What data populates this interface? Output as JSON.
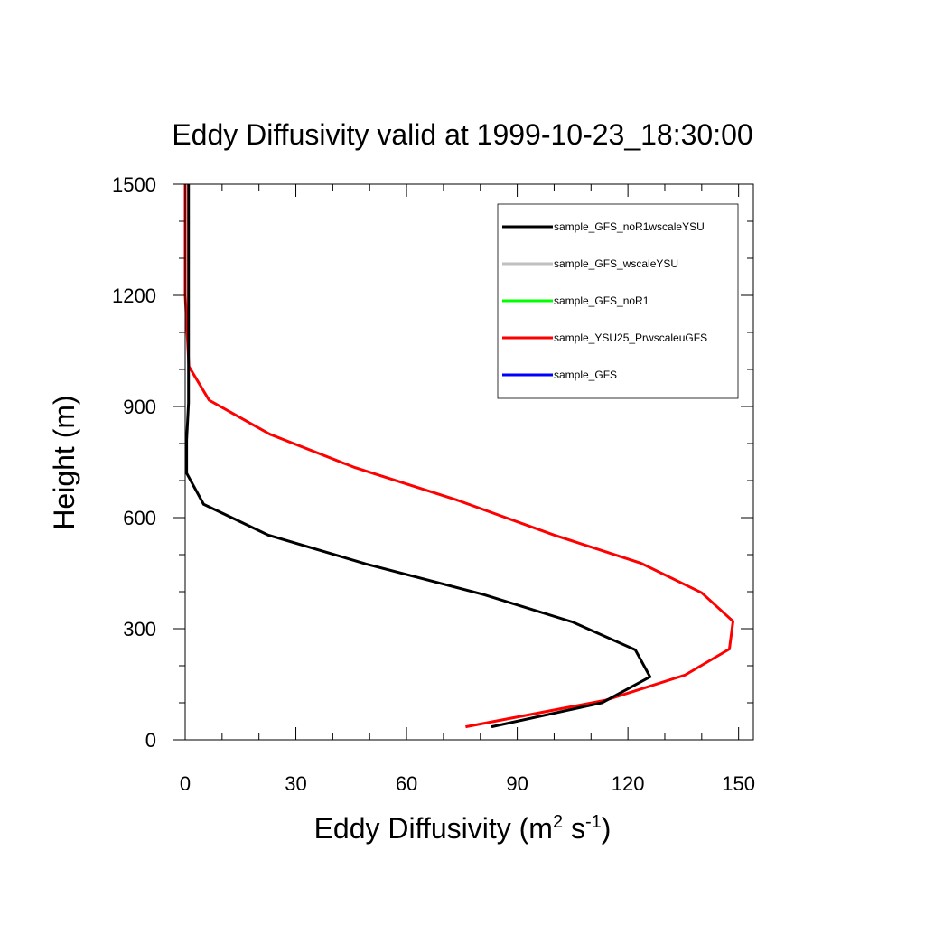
{
  "chart_data": {
    "type": "line",
    "title": "Eddy Diffusivity valid at 1999-10-23_18:30:00",
    "xlabel": {
      "base": "Eddy Diffusivity (m",
      "sup1": "2",
      "mid": " s",
      "sup2": "-1",
      "end": ")"
    },
    "ylabel": "Height (m)",
    "xlim": [
      0,
      154
    ],
    "ylim": [
      0,
      1500
    ],
    "xticks": [
      0,
      30,
      60,
      90,
      120,
      150
    ],
    "yticks": [
      0,
      300,
      600,
      900,
      1200,
      1500
    ],
    "x_minor_step": 10,
    "y_minor_step": 100,
    "grid": false,
    "legend_position": "top-right",
    "series": [
      {
        "name": "sample_GFS_noR1wscaleYSU",
        "color": "#000000",
        "points": [
          [
            83,
            35
          ],
          [
            113,
            100
          ],
          [
            126,
            170
          ],
          [
            122,
            243
          ],
          [
            105,
            318
          ],
          [
            81,
            392
          ],
          [
            49,
            475
          ],
          [
            22.5,
            553
          ],
          [
            5,
            636
          ],
          [
            0.4,
            720
          ],
          [
            0.4,
            810
          ],
          [
            0.9,
            910
          ],
          [
            0.9,
            1000
          ],
          [
            0.9,
            1200
          ],
          [
            0.9,
            1500
          ]
        ]
      },
      {
        "name": "sample_GFS_wscaleYSU",
        "color": "#c0c0c0",
        "points": []
      },
      {
        "name": "sample_GFS_noR1",
        "color": "#00ff00",
        "points": []
      },
      {
        "name": "sample_YSU25_PrwscaleuGFS",
        "color": "#ff0000",
        "points": [
          [
            76,
            35
          ],
          [
            114,
            107
          ],
          [
            135.5,
            175
          ],
          [
            147.5,
            245
          ],
          [
            148.5,
            320
          ],
          [
            140,
            397
          ],
          [
            123.5,
            477
          ],
          [
            100,
            553
          ],
          [
            73.5,
            648
          ],
          [
            46,
            735
          ],
          [
            23,
            825
          ],
          [
            6.5,
            917
          ],
          [
            1,
            1008
          ],
          [
            0,
            1200
          ],
          [
            0,
            1500
          ]
        ]
      },
      {
        "name": "sample_GFS",
        "color": "#0000ff",
        "points": []
      }
    ]
  }
}
